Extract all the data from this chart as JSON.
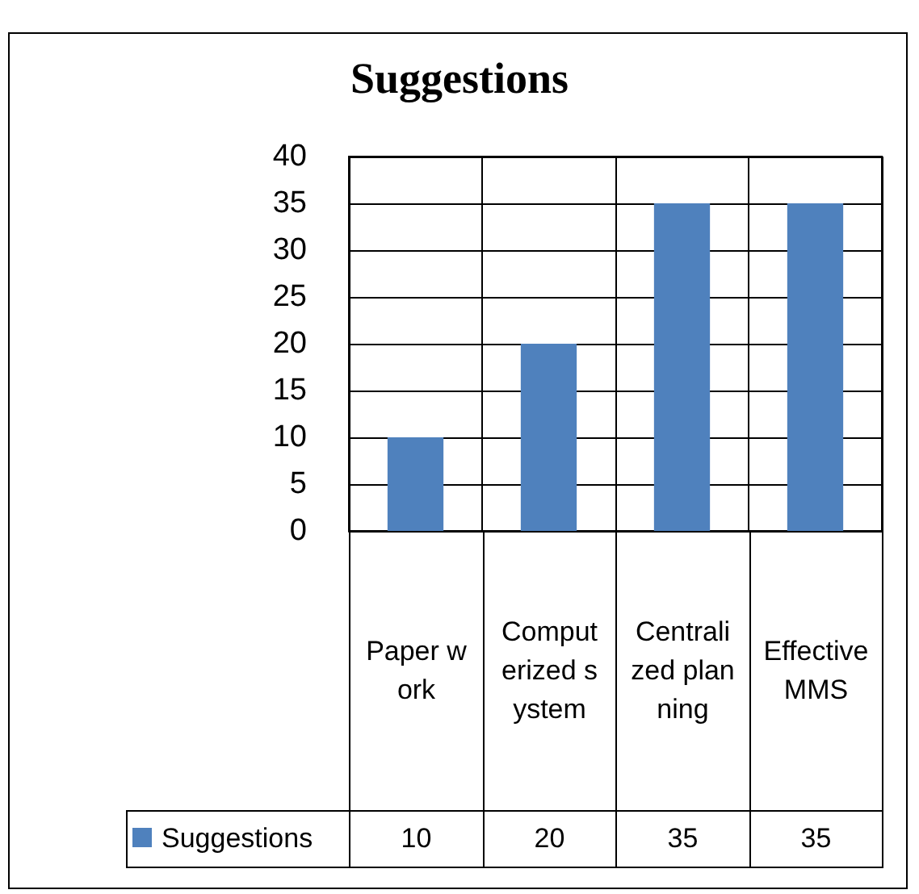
{
  "chart_data": {
    "type": "bar",
    "title": "Suggestions",
    "categories": [
      "Paper work",
      "Computerized system",
      "Centralized planning",
      "Effective MMS"
    ],
    "series": [
      {
        "name": "Suggestions",
        "color": "#4f81bd",
        "values": [
          10,
          20,
          35,
          35
        ]
      }
    ],
    "ylim": [
      0,
      40
    ],
    "yticks": [
      0,
      5,
      10,
      15,
      20,
      25,
      30,
      35,
      40
    ],
    "grid": true,
    "legend": "bottom",
    "data_labels": true
  }
}
